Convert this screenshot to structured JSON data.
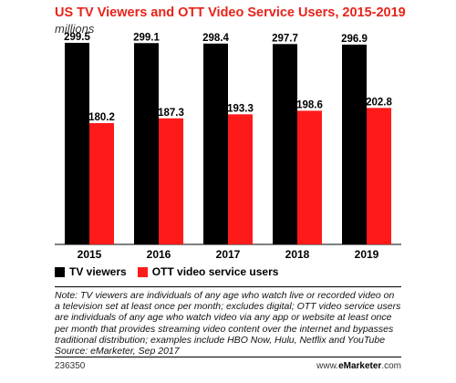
{
  "header": {
    "title": "US TV Viewers and OTT Video Service Users, 2015-2019",
    "subtitle": "millions"
  },
  "legend": {
    "items": [
      {
        "label": "TV viewers",
        "color": "#000000"
      },
      {
        "label": "OTT video service users",
        "color": "#ff1a1a"
      }
    ]
  },
  "note": "Note: TV viewers are individuals of any age who watch live or recorded video on a television set at least once per month; excludes digital; OTT video service users are individuals of any age who watch video via any app or website at least once per month that provides streaming video content over the internet and bypasses traditional distribution; examples include HBO Now, Hulu, Netflix and YouTube",
  "source": "Source: eMarketer, Sep 2017",
  "footer": {
    "id": "236350",
    "credit_prefix": "www.",
    "credit_brand": "eMarketer",
    "credit_suffix": ".com"
  },
  "chart_data": {
    "type": "bar",
    "title": "US TV Viewers and OTT Video Service Users, 2015-2019",
    "subtitle": "millions",
    "categories": [
      "2015",
      "2016",
      "2017",
      "2018",
      "2019"
    ],
    "series": [
      {
        "name": "TV viewers",
        "values": [
          299.5,
          299.1,
          298.4,
          297.7,
          296.9
        ],
        "color": "#000000"
      },
      {
        "name": "OTT video service users",
        "values": [
          180.2,
          187.3,
          193.3,
          198.6,
          202.8
        ],
        "color": "#ff1a1a"
      }
    ],
    "ylim": [
      0,
      330
    ],
    "value_labels": true,
    "grid": false,
    "legend_position": "bottom-left"
  }
}
